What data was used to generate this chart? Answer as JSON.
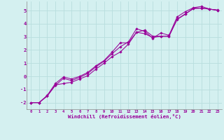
{
  "title": "",
  "xlabel": "Windchill (Refroidissement éolien,°C)",
  "background_color": "#d4f0f0",
  "grid_color": "#b8dede",
  "line_color": "#990099",
  "spine_color": "#888888",
  "xlim": [
    -0.5,
    23.5
  ],
  "ylim": [
    -2.5,
    5.7
  ],
  "yticks": [
    -2,
    -1,
    0,
    1,
    2,
    3,
    4,
    5
  ],
  "xticks": [
    0,
    1,
    2,
    3,
    4,
    5,
    6,
    7,
    8,
    9,
    10,
    11,
    12,
    13,
    14,
    15,
    16,
    17,
    18,
    19,
    20,
    21,
    22,
    23
  ],
  "series": [
    [
      -2.0,
      -2.0,
      -1.5,
      -0.65,
      -0.55,
      -0.45,
      -0.2,
      0.05,
      0.55,
      1.0,
      1.5,
      1.85,
      2.45,
      3.35,
      3.25,
      2.95,
      3.05,
      3.05,
      4.35,
      4.75,
      5.15,
      5.2,
      5.1,
      5.05
    ],
    [
      -2.0,
      -2.0,
      -1.5,
      -0.7,
      -0.15,
      -0.32,
      -0.08,
      0.22,
      0.72,
      1.15,
      1.72,
      2.25,
      2.62,
      3.62,
      3.42,
      2.9,
      3.3,
      3.12,
      4.52,
      4.92,
      5.22,
      5.32,
      5.12,
      5.02
    ],
    [
      -2.0,
      -2.0,
      -1.45,
      -0.55,
      -0.05,
      -0.2,
      0.0,
      0.3,
      0.8,
      1.2,
      1.85,
      2.55,
      2.55,
      3.35,
      3.52,
      3.05,
      3.05,
      3.05,
      4.32,
      4.72,
      5.18,
      5.18,
      5.12,
      5.02
    ]
  ]
}
